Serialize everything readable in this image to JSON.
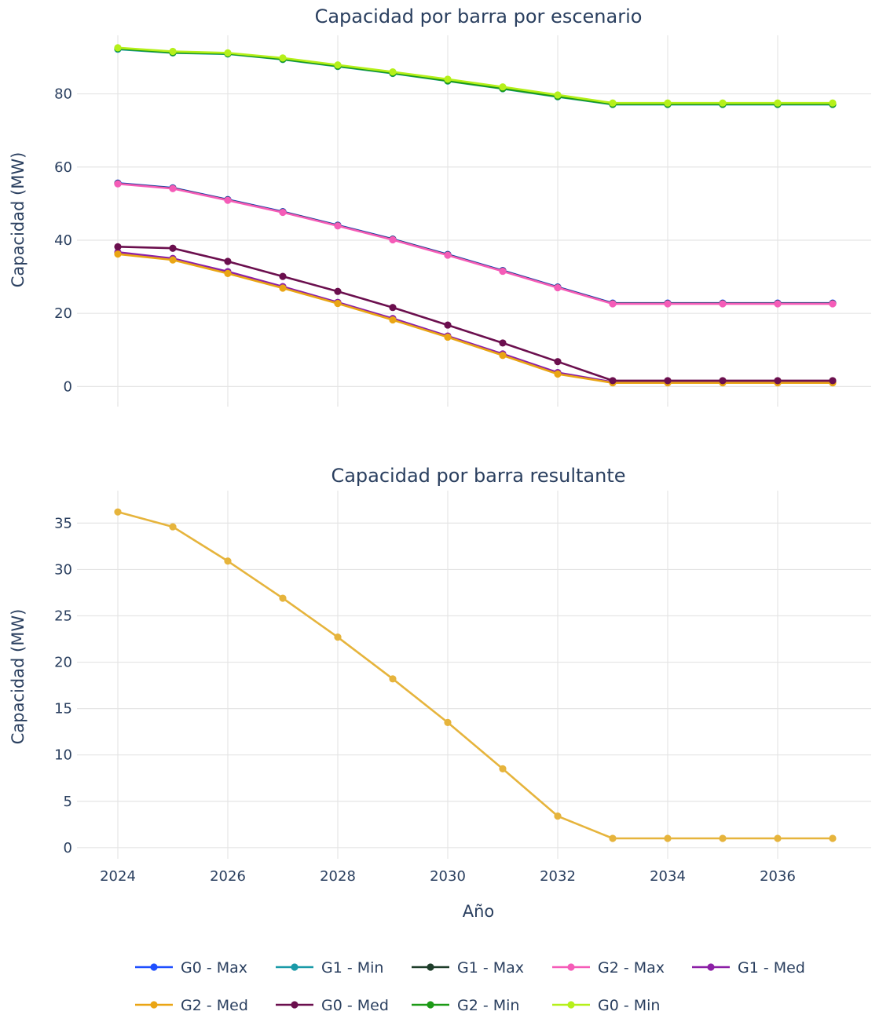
{
  "chart_data": [
    {
      "type": "line",
      "title": "Capacidad por barra por escenario",
      "xlabel": "",
      "ylabel": "Capacidad (MW)",
      "x": [
        2024,
        2025,
        2026,
        2027,
        2028,
        2029,
        2030,
        2031,
        2032,
        2033,
        2034,
        2035,
        2036,
        2037
      ],
      "xlim": [
        2023,
        2037.7
      ],
      "ylim": [
        -5.5,
        96
      ],
      "x_ticks": [
        2024,
        2026,
        2028,
        2030,
        2032,
        2034,
        2036
      ],
      "y_ticks": [
        0,
        20,
        40,
        60,
        80
      ],
      "grid": true,
      "series": [
        {
          "name": "G0 - Max",
          "color": "#1f4fff",
          "values": [
            55.6,
            54.3,
            51.1,
            47.8,
            44.1,
            40.3,
            36.1,
            31.7,
            27.2,
            22.8,
            22.8,
            22.8,
            22.8,
            22.8
          ]
        },
        {
          "name": "G1 - Min",
          "color": "#1a9aa8",
          "values": [
            92.2,
            91.2,
            90.9,
            89.4,
            87.5,
            85.6,
            83.5,
            81.4,
            79.2,
            77.1,
            77.1,
            77.1,
            77.1,
            77.1
          ]
        },
        {
          "name": "G1 - Max",
          "color": "#1e3d2a",
          "values": [
            55.5,
            54.2,
            51.0,
            47.7,
            44.0,
            40.2,
            36.0,
            31.6,
            27.1,
            22.7,
            22.7,
            22.7,
            22.7,
            22.7
          ]
        },
        {
          "name": "G2 - Max",
          "color": "#f55cb8",
          "values": [
            55.4,
            54.1,
            50.9,
            47.6,
            43.9,
            40.1,
            35.9,
            31.5,
            27.0,
            22.6,
            22.6,
            22.6,
            22.6,
            22.6
          ]
        },
        {
          "name": "G1 - Med",
          "color": "#8c1fa6",
          "values": [
            36.7,
            35.0,
            31.4,
            27.3,
            23.0,
            18.6,
            13.8,
            8.9,
            3.8,
            1.2,
            1.2,
            1.2,
            1.2,
            1.2
          ]
        },
        {
          "name": "G2 - Med",
          "color": "#eaa514",
          "values": [
            36.2,
            34.6,
            30.9,
            26.9,
            22.7,
            18.2,
            13.5,
            8.5,
            3.4,
            1.0,
            1.0,
            1.0,
            1.0,
            1.0
          ]
        },
        {
          "name": "G0 - Med",
          "color": "#6b0f4e",
          "values": [
            38.2,
            37.8,
            34.2,
            30.1,
            26.0,
            21.6,
            16.8,
            11.9,
            6.8,
            1.6,
            1.6,
            1.6,
            1.6,
            1.6
          ]
        },
        {
          "name": "G2 - Min",
          "color": "#1c9a16",
          "values": [
            92.4,
            91.3,
            91.0,
            89.5,
            87.6,
            85.7,
            83.6,
            81.5,
            79.3,
            77.2,
            77.2,
            77.2,
            77.2,
            77.2
          ]
        },
        {
          "name": "G0 - Min",
          "color": "#b5f01a",
          "values": [
            92.6,
            91.6,
            91.2,
            89.8,
            87.9,
            86.0,
            84.0,
            81.9,
            79.7,
            77.5,
            77.5,
            77.5,
            77.5,
            77.5
          ]
        }
      ],
      "legend": "bottom"
    },
    {
      "type": "line",
      "title": "Capacidad por barra resultante",
      "xlabel": "Año",
      "ylabel": "Capacidad (MW)",
      "x": [
        2024,
        2025,
        2026,
        2027,
        2028,
        2029,
        2030,
        2031,
        2032,
        2033,
        2034,
        2035,
        2036,
        2037
      ],
      "xlim": [
        2023,
        2037.7
      ],
      "ylim": [
        -1.2,
        38.5
      ],
      "x_ticks": [
        2024,
        2026,
        2028,
        2030,
        2032,
        2034,
        2036
      ],
      "y_ticks": [
        0,
        5,
        10,
        15,
        20,
        25,
        30,
        35
      ],
      "grid": true,
      "series": [
        {
          "color": "#e6b43c",
          "values": [
            36.2,
            34.6,
            30.9,
            26.9,
            22.7,
            18.2,
            13.5,
            8.5,
            3.4,
            1.0,
            1.0,
            1.0,
            1.0,
            1.0
          ]
        }
      ]
    }
  ]
}
